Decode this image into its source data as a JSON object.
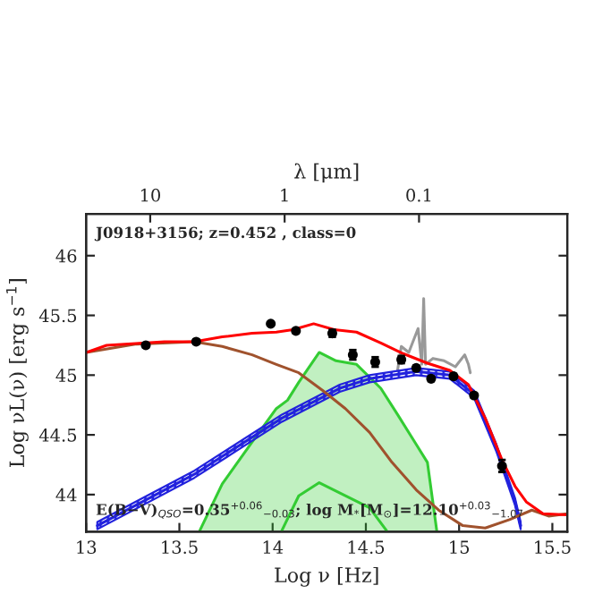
{
  "chart_data": {
    "type": "line",
    "xlabel": "Log ν [Hz]",
    "ylabel": "Log νL(ν) [erg s$^{−1}$]",
    "x2label": "λ [μm]",
    "xlim": [
      13,
      15.58
    ],
    "xticks": [
      13,
      13.5,
      14,
      14.5,
      15,
      15.5
    ],
    "ylim": [
      43.69,
      46.35
    ],
    "yticks": [
      44,
      44.5,
      45,
      45.5,
      46
    ],
    "x2lim": [
      29.98,
      0.00789
    ],
    "x2ticks": [
      10,
      1,
      0.1
    ],
    "log": "x2",
    "grid": false,
    "legend": false,
    "annotations": [
      "J0918+3156; z=0.452 , class=0",
      "E(B−V)$_{QSO}$=0.35$^{+0.06}$$_{−0.03}$; log M$_{*}$[M$_{⊙}$]=12.10$^{+0.03}$$_{−1.07}$"
    ],
    "series": [
      {
        "type": "area",
        "color": "#33cc33",
        "x": [
          13.61,
          13.73,
          13.89,
          14.02,
          14.08,
          14.14,
          14.25,
          14.34,
          14.45,
          14.58,
          14.67,
          14.77,
          14.83,
          14.88
        ],
        "values": [
          43.7,
          44.09,
          44.44,
          44.72,
          44.79,
          44.94,
          45.19,
          45.12,
          45.09,
          44.89,
          44.67,
          44.42,
          44.27,
          43.7
        ]
      },
      {
        "color": "#33cc33",
        "x": [
          14.05,
          14.14,
          14.25,
          14.39,
          14.52,
          14.61
        ],
        "values": [
          43.7,
          43.99,
          44.1,
          43.99,
          43.89,
          43.7
        ]
      },
      {
        "color": "#999999",
        "x": [
          14.67,
          14.69,
          14.73,
          14.78,
          14.8,
          14.81,
          14.82,
          14.86,
          14.92,
          14.98,
          15.03,
          15.05,
          15.06
        ],
        "values": [
          45.04,
          45.24,
          45.19,
          45.39,
          45.09,
          45.64,
          45.09,
          45.14,
          45.12,
          45.07,
          45.17,
          45.09,
          45.02
        ]
      },
      {
        "color": "#2222dd",
        "x": [
          13.06,
          13.58,
          14.05,
          14.36,
          14.52,
          14.77,
          14.95,
          15.08,
          15.2,
          15.3,
          15.33
        ],
        "values": [
          43.74,
          44.17,
          44.64,
          44.89,
          44.97,
          45.03,
          45.0,
          44.84,
          44.39,
          43.94,
          43.74
        ],
        "lower": [
          43.71,
          44.14,
          44.61,
          44.86,
          44.94,
          45.0,
          44.97,
          44.81,
          44.36,
          43.91,
          43.71
        ],
        "upper": [
          43.77,
          44.2,
          44.67,
          44.92,
          45.0,
          45.06,
          45.03,
          44.87,
          44.42,
          43.97,
          43.77
        ]
      },
      {
        "color": "#a0522d",
        "x": [
          13.0,
          13.27,
          13.58,
          13.73,
          13.89,
          14.02,
          14.14,
          14.27,
          14.39,
          14.52,
          14.64,
          14.77,
          14.89,
          15.02,
          15.14,
          15.27,
          15.39,
          15.48,
          15.58
        ],
        "values": [
          45.19,
          45.26,
          45.28,
          45.24,
          45.17,
          45.09,
          45.02,
          44.87,
          44.72,
          44.52,
          44.27,
          44.04,
          43.87,
          43.74,
          43.72,
          43.79,
          43.87,
          43.82,
          43.84
        ]
      },
      {
        "color": "#ff0000",
        "x": [
          13.0,
          13.11,
          13.42,
          13.58,
          13.73,
          13.89,
          14.02,
          14.11,
          14.22,
          14.33,
          14.45,
          14.58,
          14.7,
          14.83,
          14.95,
          15.05,
          15.14,
          15.23,
          15.3,
          15.36,
          15.45,
          15.58
        ],
        "values": [
          45.19,
          45.25,
          45.28,
          45.28,
          45.32,
          45.35,
          45.36,
          45.38,
          45.43,
          45.38,
          45.36,
          45.27,
          45.18,
          45.1,
          45.04,
          44.92,
          44.64,
          44.29,
          44.07,
          43.94,
          43.84,
          43.83
        ]
      },
      {
        "type": "scatter",
        "color": "#000000",
        "marker": "circle",
        "x": [
          13.32,
          13.59,
          13.99,
          14.125,
          14.32,
          14.43,
          14.55,
          14.69,
          14.77,
          14.85,
          14.97,
          15.08,
          15.23
        ],
        "values": [
          45.25,
          45.28,
          45.43,
          45.37,
          45.35,
          45.17,
          45.11,
          45.13,
          45.06,
          44.97,
          44.99,
          44.83,
          44.24
        ],
        "errors": [
          0.02,
          0.02,
          null,
          0.02,
          0.03,
          0.04,
          0.04,
          0.03,
          0.02,
          0.02,
          0.02,
          0.02,
          0.05
        ]
      }
    ]
  }
}
